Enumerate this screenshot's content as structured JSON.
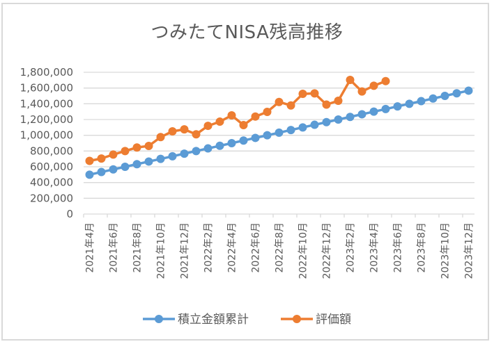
{
  "chart_data": {
    "type": "line",
    "title": "つみたてNISA残高推移",
    "xlabel": "",
    "ylabel": "",
    "ylim": [
      0,
      1800000
    ],
    "yticks": [
      0,
      200000,
      400000,
      600000,
      800000,
      1000000,
      1200000,
      1400000,
      1600000,
      1800000
    ],
    "ytick_labels": [
      "0",
      "200,000",
      "400,000",
      "600,000",
      "800,000",
      "1,000,000",
      "1,200,000",
      "1,400,000",
      "1,600,000",
      "1,800,000"
    ],
    "grid": true,
    "legend_position": "bottom",
    "categories": [
      "2021年4月",
      "2021年5月",
      "2021年6月",
      "2021年7月",
      "2021年8月",
      "2021年9月",
      "2021年10月",
      "2021年11月",
      "2021年12月",
      "2022年1月",
      "2022年2月",
      "2022年3月",
      "2022年4月",
      "2022年5月",
      "2022年6月",
      "2022年7月",
      "2022年8月",
      "2022年9月",
      "2022年10月",
      "2022年11月",
      "2022年12月",
      "2023年1月",
      "2023年2月",
      "2023年3月",
      "2023年4月",
      "2023年5月",
      "2023年6月",
      "2023年7月",
      "2023年8月",
      "2023年9月",
      "2023年10月",
      "2023年11月",
      "2023年12月"
    ],
    "xtick_labels": [
      "2021年4月",
      "2021年6月",
      "2021年8月",
      "2021年10月",
      "2021年12月",
      "2022年2月",
      "2022年4月",
      "2022年6月",
      "2022年8月",
      "2022年10月",
      "2022年12月",
      "2023年2月",
      "2023年4月",
      "2023年6月",
      "2023年8月",
      "2023年10月",
      "2023年12月"
    ],
    "series": [
      {
        "name": "積立金額累計",
        "color": "#5b9bd5",
        "values": [
          500000,
          533333,
          566667,
          600000,
          633333,
          666667,
          700000,
          733333,
          766667,
          800000,
          833333,
          866667,
          900000,
          933333,
          966667,
          1000000,
          1033333,
          1066667,
          1100000,
          1133333,
          1166667,
          1200000,
          1233333,
          1266667,
          1300000,
          1333333,
          1366667,
          1400000,
          1433333,
          1466667,
          1500000,
          1533333,
          1566667
        ]
      },
      {
        "name": "評価額",
        "color": "#ed7d31",
        "values": [
          675000,
          705000,
          755000,
          800000,
          845000,
          865000,
          977000,
          1050000,
          1075000,
          1012000,
          1120000,
          1173000,
          1253000,
          1129000,
          1238000,
          1297000,
          1423000,
          1379000,
          1526000,
          1532000,
          1390000,
          1438000,
          1703000,
          1556000,
          1629000,
          1688000,
          null,
          null,
          null,
          null,
          null,
          null,
          null
        ]
      }
    ]
  }
}
